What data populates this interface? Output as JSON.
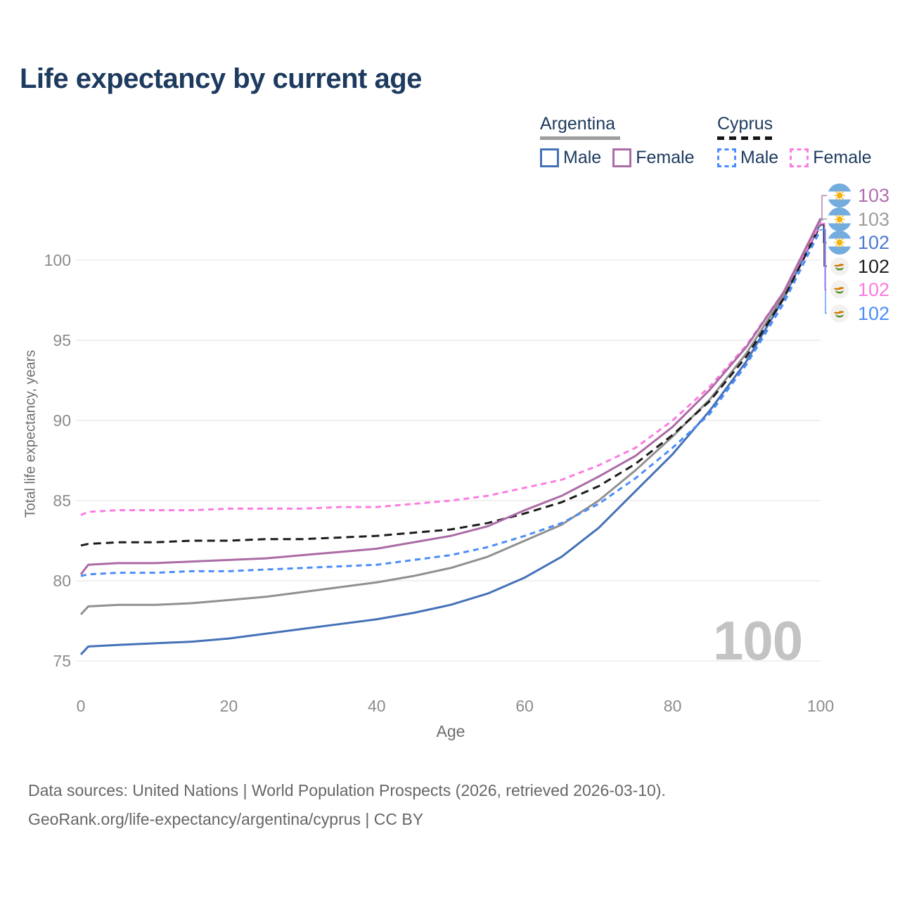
{
  "title": "Life expectancy by current age",
  "legend": {
    "argentina": {
      "country": "Argentina",
      "male_label": "Male",
      "female_label": "Female",
      "male_color": "#4571b8",
      "female_color": "#ab6ba5"
    },
    "cyprus": {
      "country": "Cyprus",
      "male_label": "Male",
      "female_label": "Female",
      "male_color": "#4b8df8",
      "female_color": "#fb7ce0"
    }
  },
  "y_axis_title": "Total life expectancy, years",
  "watermark": "100",
  "end_labels": [
    {
      "flag": "argentina",
      "value": "103",
      "color": "#b06fae",
      "series": "Argentina Female"
    },
    {
      "flag": "argentina",
      "value": "103",
      "color": "#9e9e9e",
      "series": "Argentina"
    },
    {
      "flag": "argentina",
      "value": "102",
      "color": "#4a7ad0",
      "series": "Argentina Male"
    },
    {
      "flag": "cyprus",
      "value": "102",
      "color": "#1f1f1f",
      "series": "Cyprus"
    },
    {
      "flag": "cyprus",
      "value": "102",
      "color": "#fb7ce0",
      "series": "Cyprus Female"
    },
    {
      "flag": "cyprus",
      "value": "102",
      "color": "#4b8df8",
      "series": "Cyprus Male"
    }
  ],
  "footer": {
    "line1": "Data sources: United Nations | World Population Prospects (2026, retrieved 2026-03-10).",
    "line2": "GeoRank.org/life-expectancy/argentina/cyprus | CC BY"
  },
  "chart_data": {
    "type": "line",
    "title": "Life expectancy by current age",
    "xlabel": "Age",
    "ylabel": "Total life expectancy, years",
    "xlim": [
      0,
      100
    ],
    "ylim": [
      74.5,
      103.5
    ],
    "x_ticks": [
      0,
      20,
      40,
      60,
      80,
      100
    ],
    "y_ticks": [
      75,
      80,
      85,
      90,
      95,
      100
    ],
    "grid": "horizontal",
    "legend_position": "top-right",
    "ages": [
      0,
      1,
      5,
      10,
      15,
      20,
      25,
      30,
      35,
      40,
      45,
      50,
      55,
      60,
      65,
      70,
      75,
      80,
      85,
      90,
      95,
      100
    ],
    "series": [
      {
        "name": "Argentina Male",
        "country": "Argentina",
        "sex": "Male",
        "style": "solid",
        "color": "#4571b8",
        "values": [
          75.4,
          75.9,
          76.0,
          76.1,
          76.2,
          76.4,
          76.7,
          77.0,
          77.3,
          77.6,
          78.0,
          78.5,
          79.2,
          80.2,
          81.5,
          83.3,
          85.6,
          87.9,
          90.6,
          93.7,
          97.6,
          102.3
        ],
        "end_label": "102"
      },
      {
        "name": "Argentina Female",
        "country": "Argentina",
        "sex": "Female",
        "style": "solid",
        "color": "#ab6ba5",
        "values": [
          80.4,
          81.0,
          81.1,
          81.1,
          81.2,
          81.3,
          81.4,
          81.6,
          81.8,
          82.0,
          82.4,
          82.8,
          83.4,
          84.4,
          85.3,
          86.5,
          87.8,
          89.6,
          91.9,
          94.6,
          98.0,
          102.6
        ],
        "end_label": "103"
      },
      {
        "name": "Argentina",
        "country": "Argentina",
        "sex": "Both",
        "style": "solid",
        "color": "#909090",
        "values": [
          77.9,
          78.4,
          78.5,
          78.5,
          78.6,
          78.8,
          79.0,
          79.3,
          79.6,
          79.9,
          80.3,
          80.8,
          81.5,
          82.5,
          83.5,
          85.0,
          86.9,
          89.0,
          91.3,
          94.2,
          97.8,
          102.5
        ],
        "end_label": "103"
      },
      {
        "name": "Cyprus Male",
        "country": "Cyprus",
        "sex": "Male",
        "style": "dashed",
        "color": "#4b8df8",
        "values": [
          80.3,
          80.4,
          80.5,
          80.5,
          80.6,
          80.6,
          80.7,
          80.8,
          80.9,
          81.0,
          81.3,
          81.6,
          82.1,
          82.8,
          83.6,
          84.8,
          86.4,
          88.3,
          90.4,
          93.5,
          97.3,
          101.9
        ],
        "end_label": "102"
      },
      {
        "name": "Cyprus Female",
        "country": "Cyprus",
        "sex": "Female",
        "style": "dashed",
        "color": "#fb7ce0",
        "values": [
          84.1,
          84.3,
          84.4,
          84.4,
          84.4,
          84.5,
          84.5,
          84.5,
          84.6,
          84.6,
          84.8,
          85.0,
          85.3,
          85.8,
          86.3,
          87.2,
          88.3,
          90.0,
          92.1,
          94.7,
          98.0,
          102.3
        ],
        "end_label": "102"
      },
      {
        "name": "Cyprus",
        "country": "Cyprus",
        "sex": "Both",
        "style": "dashed",
        "color": "#1c1c1c",
        "values": [
          82.2,
          82.3,
          82.4,
          82.4,
          82.5,
          82.5,
          82.6,
          82.6,
          82.7,
          82.8,
          83.0,
          83.2,
          83.6,
          84.2,
          84.9,
          85.9,
          87.3,
          89.1,
          91.2,
          94.0,
          97.6,
          102.2
        ],
        "end_label": "102"
      }
    ]
  }
}
